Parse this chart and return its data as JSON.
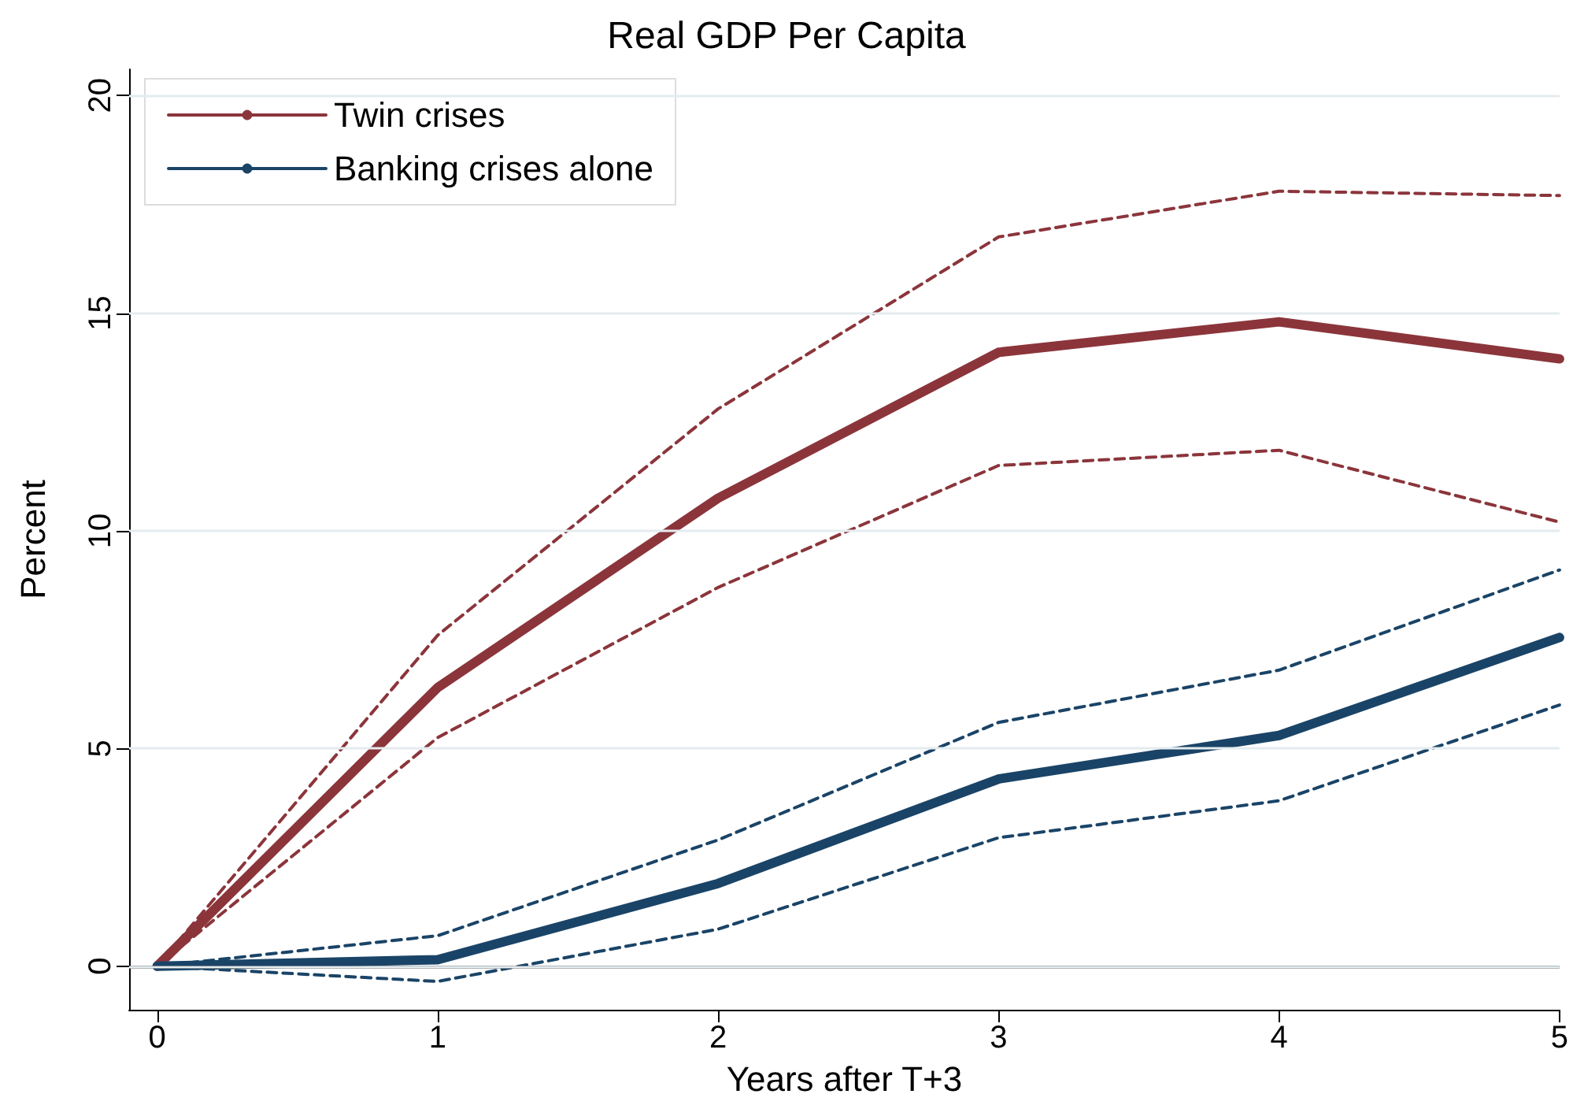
{
  "chart_data": {
    "type": "line",
    "title": "Real GDP Per Capita",
    "xlabel": "Years after T+3",
    "ylabel": "Percent",
    "x": [
      0,
      1,
      2,
      3,
      4,
      5
    ],
    "series": [
      {
        "name": "Twin crises",
        "color": "#8b353b",
        "values": [
          0,
          6.4,
          10.75,
          14.1,
          14.8,
          13.95
        ]
      },
      {
        "name": "Banking crises alone",
        "color": "#1a4467",
        "values": [
          0,
          0.15,
          1.9,
          4.3,
          5.3,
          7.55
        ]
      },
      {
        "color": "#8b353b",
        "line_style": "dashed",
        "values": [
          0,
          7.6,
          12.8,
          16.75,
          17.8,
          17.7
        ]
      },
      {
        "color": "#8b353b",
        "line_style": "dashed",
        "values": [
          0,
          5.25,
          8.7,
          11.5,
          11.85,
          10.2
        ]
      },
      {
        "color": "#1a4467",
        "line_style": "dashed",
        "values": [
          0,
          0.7,
          2.9,
          5.6,
          6.8,
          9.1
        ]
      },
      {
        "color": "#1a4467",
        "line_style": "dashed",
        "values": [
          0,
          -0.35,
          0.85,
          2.95,
          3.8,
          6.0
        ]
      }
    ],
    "xlim": [
      -0.1,
      5
    ],
    "xticks": [
      0,
      1,
      2,
      3,
      4,
      5
    ],
    "ylim": [
      -1,
      20.6
    ],
    "yticks": [
      0,
      5,
      10,
      15,
      20
    ],
    "ref_lines": [
      {
        "axis": "y",
        "value": 0,
        "color": "#000000"
      }
    ],
    "grid": "y",
    "legend": "top left",
    "marker": "none",
    "line_style": "solid"
  }
}
